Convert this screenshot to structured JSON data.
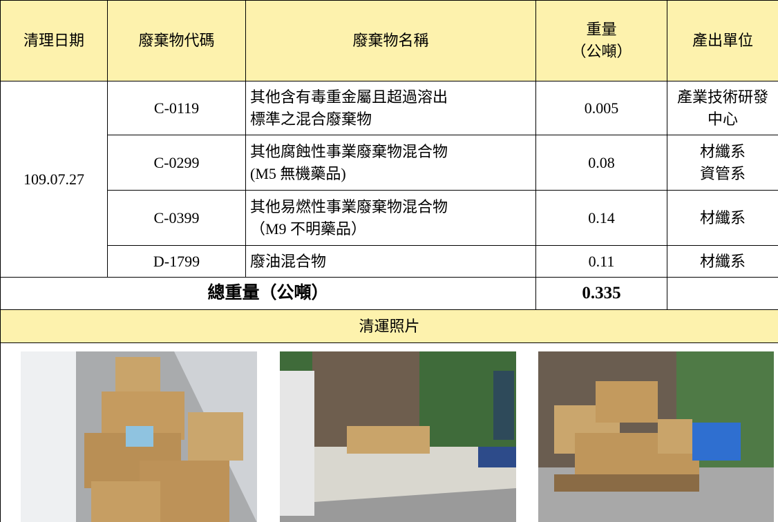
{
  "table": {
    "header": [
      "清理日期",
      "廢棄物代碼",
      "廢棄物名稱",
      "重量\n（公噸）",
      "產出單位"
    ],
    "date": "109.07.27",
    "rows": [
      {
        "code": "C-0119",
        "name": "其他含有毒重金屬且超過溶出\n標準之混合廢棄物",
        "weight": 0.005,
        "unit": "產業技術研發\n中心"
      },
      {
        "code": "C-0299",
        "name": "其他腐蝕性事業廢棄物混合物\n(M5 無機藥品)",
        "weight": 0.08,
        "unit": "材纖系\n資管系"
      },
      {
        "code": "C-0399",
        "name": "其他易燃性事業廢棄物混合物\n（M9 不明藥品）",
        "weight": 0.14,
        "unit": "材纖系"
      },
      {
        "code": "D-1799",
        "name": "廢油混合物",
        "weight": 0.11,
        "unit": "材纖系"
      }
    ],
    "total_label": "總重量（公噸）",
    "total": 0.335,
    "photos_title": "清運照片"
  }
}
